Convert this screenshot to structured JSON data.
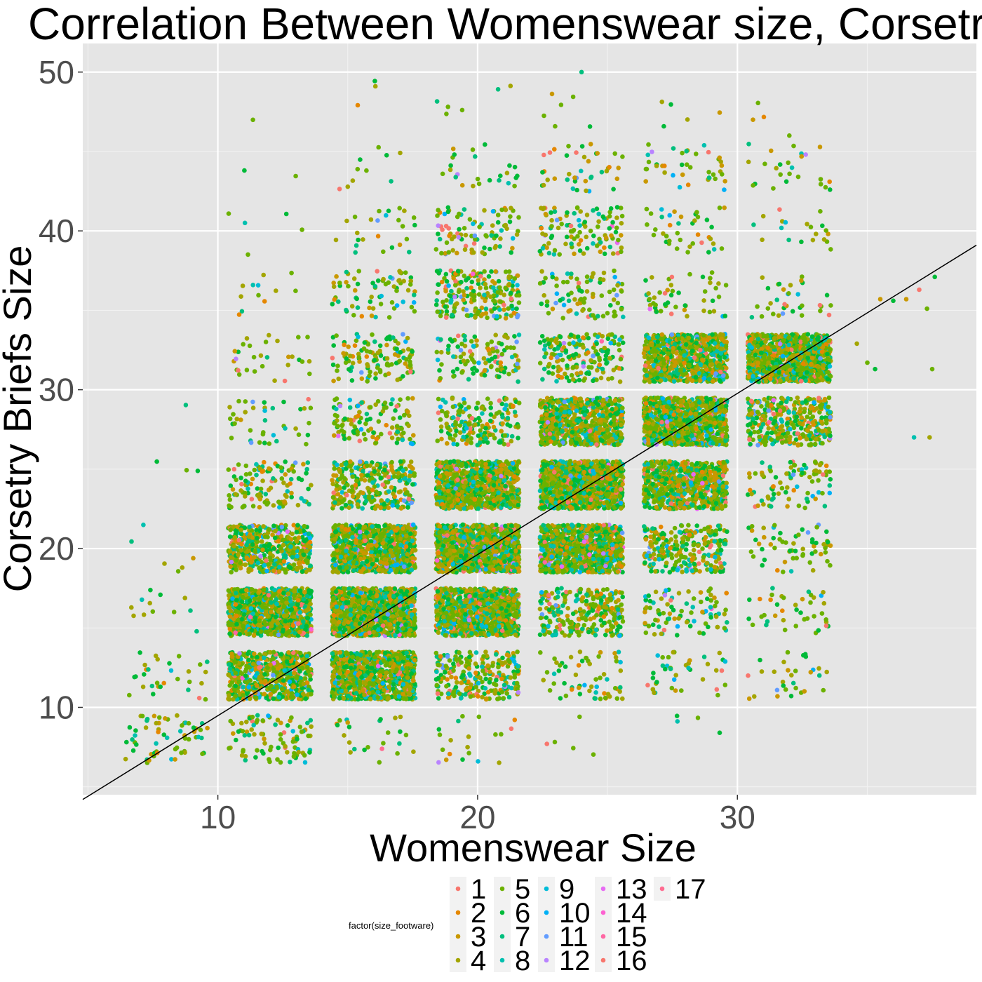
{
  "chart_data": {
    "type": "scatter",
    "title": "Correlation Between Womenswear size, Corsetry Briefs Size and Footwear Size",
    "xlabel": "Womenswear Size",
    "ylabel": "Corsetry Briefs Size",
    "xlim": [
      4.8,
      39.2
    ],
    "ylim": [
      4.5,
      51.8
    ],
    "x_ticks": [
      10,
      20,
      30
    ],
    "x_tick_labels": [
      "10",
      "20",
      "30"
    ],
    "y_ticks": [
      10,
      20,
      30,
      40,
      50
    ],
    "y_tick_labels": [
      "10",
      "20",
      "30",
      "40",
      "50"
    ],
    "grid": true,
    "background": "#e5e5e5",
    "legend": {
      "title": "factor(size_footware)",
      "position": "bottom",
      "entries": [
        {
          "label": "1",
          "color": "#f8766d"
        },
        {
          "label": "2",
          "color": "#e58700"
        },
        {
          "label": "3",
          "color": "#c99800"
        },
        {
          "label": "4",
          "color": "#a3a500"
        },
        {
          "label": "5",
          "color": "#6bb100"
        },
        {
          "label": "6",
          "color": "#00ba38"
        },
        {
          "label": "7",
          "color": "#00bf7d"
        },
        {
          "label": "8",
          "color": "#00c0af"
        },
        {
          "label": "9",
          "color": "#00bcd8"
        },
        {
          "label": "10",
          "color": "#00b0f6"
        },
        {
          "label": "11",
          "color": "#619cff"
        },
        {
          "label": "12",
          "color": "#b983ff"
        },
        {
          "label": "13",
          "color": "#e76bf3"
        },
        {
          "label": "14",
          "color": "#fd61d1"
        },
        {
          "label": "15",
          "color": "#ff67a4"
        },
        {
          "label": "16",
          "color": "#f8766d"
        },
        {
          "label": "17",
          "color": "#ff6c91"
        }
      ]
    },
    "trend_line": {
      "x": [
        4.8,
        39.2
      ],
      "y": [
        4.2,
        39.1
      ],
      "color": "#000000"
    },
    "cluster_grid": {
      "x_centers": [
        8,
        12,
        16,
        20,
        24,
        28,
        32
      ],
      "y_centers": [
        8,
        12,
        16,
        20,
        24,
        28,
        32,
        36,
        40,
        44,
        48
      ],
      "x_half_width": 1.6,
      "y_half_width": 1.5,
      "counts": [
        [
          60,
          30,
          12,
          6,
          3,
          1,
          0,
          0,
          0,
          0,
          0
        ],
        [
          90,
          600,
          900,
          500,
          120,
          40,
          30,
          12,
          5,
          2,
          1
        ],
        [
          25,
          900,
          1200,
          900,
          300,
          120,
          120,
          70,
          25,
          10,
          3
        ],
        [
          20,
          250,
          900,
          1100,
          900,
          180,
          120,
          200,
          90,
          25,
          6
        ],
        [
          5,
          60,
          250,
          900,
          1100,
          700,
          180,
          90,
          110,
          40,
          6
        ],
        [
          4,
          40,
          90,
          250,
          700,
          1000,
          800,
          50,
          40,
          40,
          5
        ],
        [
          0,
          30,
          40,
          60,
          90,
          350,
          1000,
          35,
          20,
          25,
          2
        ]
      ],
      "outliers": [
        [
          35.5,
          35.7
        ],
        [
          36.0,
          35.6
        ],
        [
          36.5,
          35.7
        ],
        [
          37.3,
          35.1
        ],
        [
          37.6,
          37.1
        ],
        [
          37.0,
          36.3
        ],
        [
          36.8,
          27.0
        ],
        [
          37.4,
          27.0
        ],
        [
          37.5,
          31.3
        ],
        [
          34.6,
          32.9
        ],
        [
          35.0,
          31.7
        ],
        [
          35.3,
          31.3
        ],
        [
          30.6,
          47.0
        ],
        [
          32.0,
          46.0
        ],
        [
          24.0,
          50.0
        ]
      ]
    }
  }
}
